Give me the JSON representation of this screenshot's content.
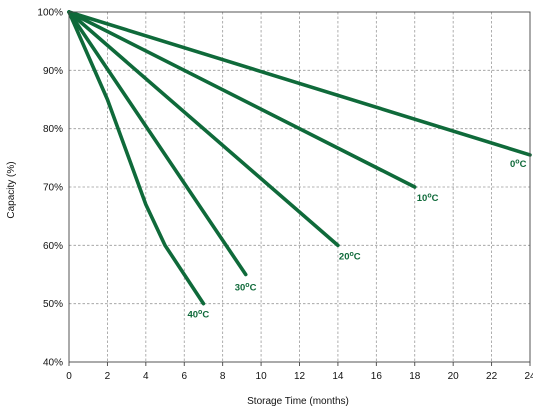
{
  "chart_data": {
    "type": "line",
    "title": "",
    "xlabel": "Storage Time (months)",
    "ylabel": "Capacity (%)",
    "xlim": [
      0,
      24
    ],
    "ylim": [
      40,
      100
    ],
    "grid": true,
    "x_ticks": [
      0,
      2,
      4,
      6,
      8,
      10,
      12,
      14,
      16,
      18,
      20,
      22,
      24
    ],
    "y_ticks": [
      {
        "value": 40,
        "label": "40%"
      },
      {
        "value": 50,
        "label": "50%"
      },
      {
        "value": 60,
        "label": "60%"
      },
      {
        "value": 70,
        "label": "70%"
      },
      {
        "value": 80,
        "label": "80%"
      },
      {
        "value": 90,
        "label": "90%"
      },
      {
        "value": 100,
        "label": "100%"
      }
    ],
    "series": [
      {
        "name": "0ºC",
        "label_main": "0",
        "label_sup": "o",
        "label_unit": "C",
        "color": "#0f6a3a",
        "points": [
          [
            0,
            100
          ],
          [
            24,
            75.5
          ]
        ]
      },
      {
        "name": "10ºC",
        "label_main": "10",
        "label_sup": "o",
        "label_unit": "C",
        "color": "#0f6a3a",
        "points": [
          [
            0,
            100
          ],
          [
            18,
            70
          ]
        ]
      },
      {
        "name": "20ºC",
        "label_main": "20",
        "label_sup": "o",
        "label_unit": "C",
        "color": "#0f6a3a",
        "points": [
          [
            0,
            100
          ],
          [
            14,
            60
          ]
        ]
      },
      {
        "name": "30ºC",
        "label_main": "30",
        "label_sup": "o",
        "label_unit": "C",
        "color": "#0f6a3a",
        "points": [
          [
            0,
            100
          ],
          [
            9.2,
            55
          ]
        ]
      },
      {
        "name": "40ºC",
        "label_main": "40",
        "label_sup": "o",
        "label_unit": "C",
        "color": "#0f6a3a",
        "points": [
          [
            0,
            100
          ],
          [
            2,
            85
          ],
          [
            4,
            67
          ],
          [
            5,
            60
          ],
          [
            6,
            55
          ],
          [
            7,
            50
          ]
        ]
      }
    ]
  }
}
